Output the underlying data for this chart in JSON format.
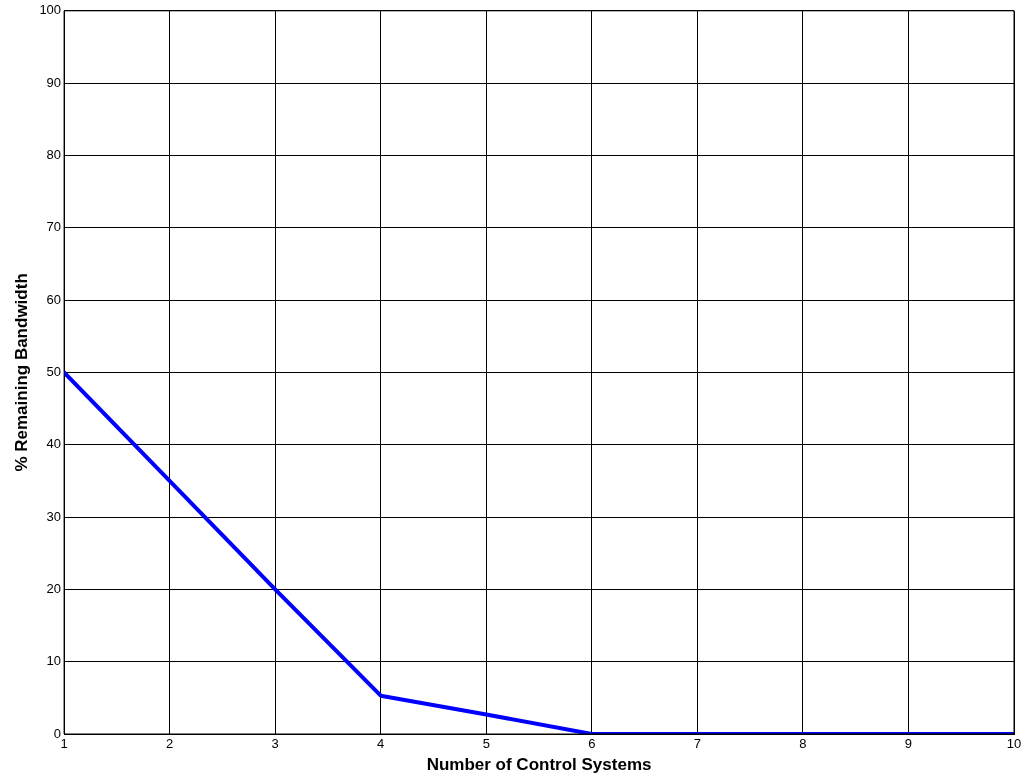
{
  "chart_data": {
    "type": "line",
    "xlabel": "Number of Control Systems",
    "ylabel": "% Remaining Bandwidth",
    "x": [
      1,
      2,
      3,
      4,
      5,
      6,
      7,
      8,
      9,
      10
    ],
    "series": [
      {
        "color": "#0000ff",
        "values": [
          50,
          35,
          20,
          5.3,
          2.7,
          0,
          0,
          0,
          0,
          0
        ]
      }
    ],
    "xlim": [
      1,
      10
    ],
    "xticks": [
      1,
      2,
      3,
      4,
      5,
      6,
      7,
      8,
      9,
      10
    ],
    "ylim": [
      0,
      100
    ],
    "yticks": [
      0,
      10,
      20,
      30,
      40,
      50,
      60,
      70,
      80,
      90,
      100
    ],
    "grid": true,
    "legend": false,
    "marker": "none",
    "line_style": "solid"
  }
}
